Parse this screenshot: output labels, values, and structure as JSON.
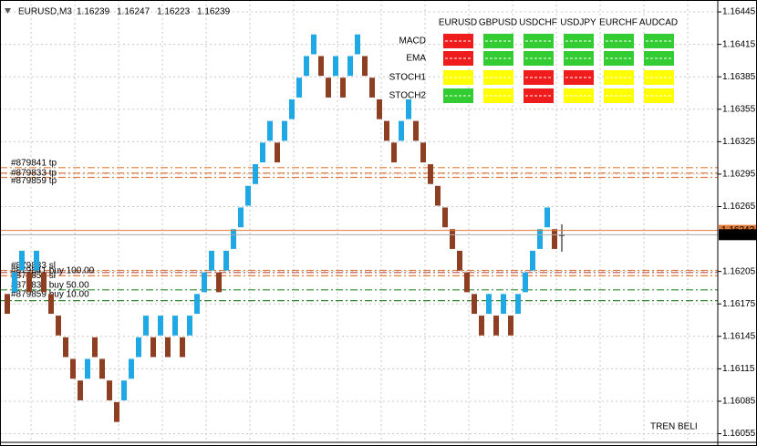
{
  "chart_data": {
    "type": "renko",
    "symbol": "EURUSD,M3",
    "ohlc": [
      1.16239,
      1.16247,
      1.16223,
      1.16239
    ],
    "open": [
      1.16185,
      1.16185,
      1.16205,
      1.16205,
      1.16205,
      1.16205,
      1.16185,
      1.16165,
      1.16145,
      1.16125,
      1.16105,
      1.16105,
      1.16145,
      1.16125,
      1.16105,
      1.16085,
      1.16085,
      1.16105,
      1.16125,
      1.16145,
      1.16145,
      1.16145,
      1.16145,
      1.16145,
      1.16145,
      1.16145,
      1.16165,
      1.16185,
      1.16205,
      1.16205,
      1.16205,
      1.16225,
      1.16245,
      1.16265,
      1.16285,
      1.16305,
      1.16325,
      1.16325,
      1.16325,
      1.16345,
      1.16365,
      1.16385,
      1.16405,
      1.16405,
      1.16385,
      1.16385,
      1.16385,
      1.16385,
      1.16405,
      1.16405,
      1.16385,
      1.16365,
      1.16345,
      1.16325,
      1.16325,
      1.16345,
      1.16345,
      1.16325,
      1.16305,
      1.16285,
      1.16265,
      1.16245,
      1.16225,
      1.16205,
      1.16185,
      1.16165,
      1.16165,
      1.16165,
      1.16165,
      1.16165,
      1.16165,
      1.16185,
      1.16205,
      1.16225,
      1.16245,
      1.16245
    ],
    "close": [
      1.16165,
      1.16205,
      1.16225,
      1.16185,
      1.16225,
      1.16185,
      1.16165,
      1.16145,
      1.16125,
      1.16105,
      1.16085,
      1.16125,
      1.16125,
      1.16105,
      1.16085,
      1.16065,
      1.16105,
      1.16125,
      1.16145,
      1.16165,
      1.16125,
      1.16165,
      1.16125,
      1.16165,
      1.16125,
      1.16165,
      1.16185,
      1.16205,
      1.16225,
      1.16185,
      1.16225,
      1.16245,
      1.16265,
      1.16285,
      1.16305,
      1.16325,
      1.16345,
      1.16305,
      1.16345,
      1.16365,
      1.16385,
      1.16405,
      1.16425,
      1.16385,
      1.16365,
      1.16405,
      1.16365,
      1.16405,
      1.16425,
      1.16385,
      1.16365,
      1.16345,
      1.16325,
      1.16305,
      1.16345,
      1.16365,
      1.16325,
      1.16305,
      1.16285,
      1.16265,
      1.16245,
      1.16225,
      1.16205,
      1.16185,
      1.16165,
      1.16145,
      1.16185,
      1.16145,
      1.16185,
      1.16145,
      1.16185,
      1.16205,
      1.16225,
      1.16245,
      1.16265,
      1.16225
    ],
    "up_color": "#1fa8e4",
    "down_color": "#8e3e22",
    "ylim": [
      1.16047,
      1.16456
    ],
    "yticks": [
      1.16445,
      1.16415,
      1.16385,
      1.16355,
      1.16325,
      1.16295,
      1.16265,
      1.16205,
      1.16175,
      1.16145,
      1.16115,
      1.16085,
      1.16055
    ],
    "grid": true,
    "order_lines": [
      {
        "label": "#879841 tp",
        "price": 1.16301,
        "color": "#e07b39"
      },
      {
        "label": "#879833 tp",
        "price": 1.16296,
        "color": "#e07b39"
      },
      {
        "label": "#879859 tp",
        "price": 1.16292,
        "color": "#e07b39"
      },
      {
        "label": "#879833 sl",
        "price": 1.16206,
        "color": "#e07b39"
      },
      {
        "label": "#879841 buy 100.00",
        "price": 1.16204,
        "color": "#c0504d"
      },
      {
        "label": "#879859 sl",
        "price": 1.16201,
        "color": "#e07b39"
      },
      {
        "label": "#879833 buy 50.00",
        "price": 1.16188,
        "color": "#2e8b2e"
      },
      {
        "label": "#879859 buy 10.00",
        "price": 1.16178,
        "color": "#2e8b2e"
      }
    ],
    "price_lines": [
      {
        "value": 1.16243,
        "color": "#e07b39"
      },
      {
        "value": 1.16239,
        "color": "#000000"
      }
    ],
    "signal_table": {
      "columns": [
        "EURUSD",
        "GBPUSD",
        "USDCHF",
        "USDJPY",
        "EURCHF",
        "AUDCAD"
      ],
      "rows": [
        {
          "label": "MACD",
          "colors": [
            "#ee1c1c",
            "#33cc33",
            "#33cc33",
            "#33cc33",
            "#33cc33",
            "#33cc33"
          ]
        },
        {
          "label": "EMA",
          "colors": [
            "#ee1c1c",
            "#33cc33",
            "#33cc33",
            "#33cc33",
            "#33cc33",
            "#33cc33"
          ]
        },
        {
          "label": "STOCH1",
          "colors": [
            "#ffff00",
            "#ffff00",
            "#ee1c1c",
            "#ee1c1c",
            "#ffff00",
            "#ffff00"
          ]
        },
        {
          "label": "STOCH2",
          "colors": [
            "#33cc33",
            "#ffff00",
            "#ee1c1c",
            "#ffff00",
            "#ffff00",
            "#ffff00"
          ]
        }
      ]
    },
    "trend_label": "TREN BELI",
    "trend_color": "#33cc33"
  }
}
